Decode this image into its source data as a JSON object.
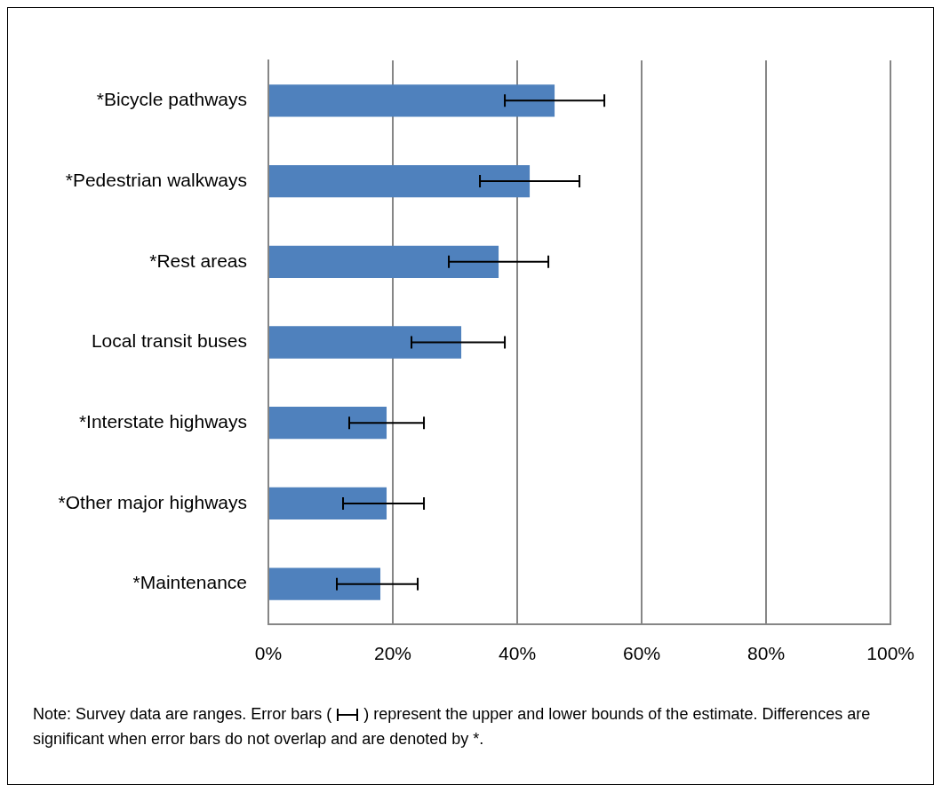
{
  "chart_data": {
    "type": "bar",
    "orientation": "horizontal",
    "categories": [
      "*Bicycle pathways",
      "*Pedestrian walkways",
      "*Rest areas",
      "Local transit buses",
      "*Interstate highways",
      "*Other major highways",
      "*Maintenance"
    ],
    "values": [
      46,
      42,
      37,
      31,
      19,
      19,
      18
    ],
    "errors": [
      [
        38,
        54
      ],
      [
        34,
        50
      ],
      [
        29,
        45
      ],
      [
        23,
        38
      ],
      [
        13,
        25
      ],
      [
        12,
        25
      ],
      [
        11,
        24
      ]
    ],
    "color": "#4f81bd",
    "xlim": [
      0,
      100
    ],
    "xticks": [
      {
        "value": 0,
        "label": "0%"
      },
      {
        "value": 20,
        "label": "20%"
      },
      {
        "value": 40,
        "label": "40%"
      },
      {
        "value": 60,
        "label": "60%"
      },
      {
        "value": 80,
        "label": "80%"
      },
      {
        "value": 100,
        "label": "100%"
      }
    ],
    "grid": "x",
    "legend": false,
    "annotations": [
      "Note:  Survey data are ranges.  Error bars (",
      ") represent the upper and lower bounds of the estimate. Differences are significant when error bars do not overlap and are denoted by *."
    ]
  }
}
